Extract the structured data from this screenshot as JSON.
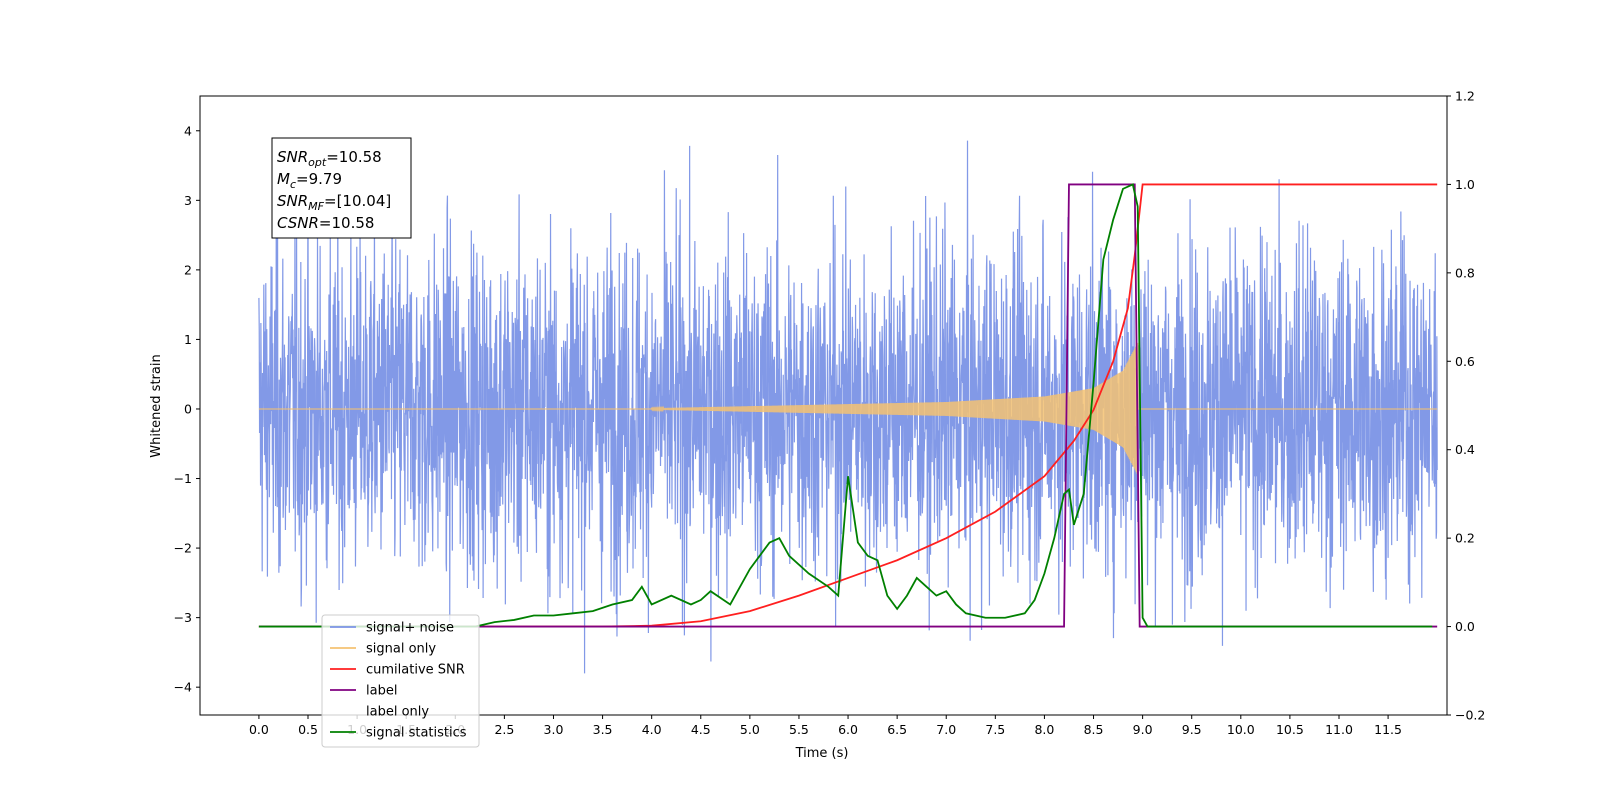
{
  "chart_data": {
    "type": "line",
    "title": "",
    "xlabel": "Time (s)",
    "ylabel": "Whitened strain",
    "xlim": [
      -0.6,
      12.1
    ],
    "ylim": [
      -4.4,
      4.5
    ],
    "y2lim": [
      -0.2,
      1.2
    ],
    "x_ticks": [
      0.0,
      0.5,
      1.0,
      1.5,
      2.0,
      2.5,
      3.0,
      3.5,
      4.0,
      4.5,
      5.0,
      5.5,
      6.0,
      6.5,
      7.0,
      7.5,
      8.0,
      8.5,
      9.0,
      9.5,
      10.0,
      10.5,
      11.0,
      11.5
    ],
    "x_tick_labels": [
      "0.0",
      "0.5",
      "1.0",
      "1.5",
      "2.0",
      "2.5",
      "3.0",
      "3.5",
      "4.0",
      "4.5",
      "5.0",
      "5.5",
      "6.0",
      "6.5",
      "7.0",
      "7.5",
      "8.0",
      "8.5",
      "9.0",
      "9.5",
      "10.0",
      "10.5",
      "11.0",
      "11.5"
    ],
    "y_ticks": [
      -4,
      -3,
      -2,
      -1,
      0,
      1,
      2,
      3,
      4
    ],
    "y_tick_labels": [
      "−4",
      "−3",
      "−2",
      "−1",
      "0",
      "1",
      "2",
      "3",
      "4"
    ],
    "y2_ticks": [
      -0.2,
      0.0,
      0.2,
      0.4,
      0.6,
      0.8,
      1.0,
      1.2
    ],
    "y2_tick_labels": [
      "−0.2",
      "0.0",
      "0.2",
      "0.4",
      "0.6",
      "0.8",
      "1.0",
      "1.2"
    ],
    "grid": false,
    "legend_position": "lower-left",
    "annotation": {
      "lines": [
        {
          "sym": "SNR",
          "sub": "opt",
          "val": "=10.58"
        },
        {
          "sym": "M",
          "sub": "c",
          "val": "=9.79"
        },
        {
          "sym": "SNR",
          "sub": "MF",
          "val": "=[10.04]"
        },
        {
          "sym": "CSNR",
          "sub": "",
          "val": "=10.58"
        }
      ]
    },
    "series": [
      {
        "name": "signal+ noise",
        "axis": "left",
        "color": "#7b93e6",
        "kind": "noise",
        "x_range": [
          0.0,
          12.0
        ],
        "std": 1.2,
        "peak_max": 4.12,
        "peak_min": -4.0
      },
      {
        "name": "signal only",
        "axis": "left",
        "color": "#f5c272",
        "kind": "chirp",
        "x_range": [
          0.0,
          12.0
        ],
        "envelope": {
          "x": [
            4.0,
            5.0,
            6.0,
            7.0,
            8.0,
            8.5,
            8.8,
            8.95
          ],
          "amp": [
            0.01,
            0.04,
            0.07,
            0.1,
            0.18,
            0.3,
            0.55,
            0.95
          ]
        }
      },
      {
        "name": "cumilative SNR",
        "axis": "right",
        "color": "#ff1f1f",
        "x": [
          0.0,
          3.5,
          4.0,
          4.5,
          5.0,
          5.5,
          6.0,
          6.5,
          7.0,
          7.5,
          8.0,
          8.3,
          8.5,
          8.7,
          8.85,
          8.92,
          8.95,
          9.0,
          12.0
        ],
        "y": [
          0.0,
          0.0,
          0.002,
          0.012,
          0.035,
          0.07,
          0.11,
          0.15,
          0.2,
          0.26,
          0.34,
          0.42,
          0.49,
          0.6,
          0.72,
          0.84,
          0.9,
          1.0,
          1.0
        ]
      },
      {
        "name": "label",
        "axis": "right",
        "color": "#800080",
        "x": [
          0.0,
          8.2,
          8.25,
          8.92,
          8.97,
          12.0
        ],
        "y": [
          0.0,
          0.0,
          1.0,
          1.0,
          0.0,
          0.0
        ]
      },
      {
        "name": "label only",
        "axis": "right",
        "color": "#ffffff",
        "hidden": true,
        "x": [],
        "y": []
      },
      {
        "name": "signal statistics",
        "axis": "right",
        "color": "#008000",
        "x": [
          0.0,
          2.2,
          2.4,
          2.6,
          2.8,
          3.0,
          3.2,
          3.4,
          3.6,
          3.8,
          3.9,
          4.0,
          4.2,
          4.4,
          4.5,
          4.6,
          4.8,
          5.0,
          5.1,
          5.2,
          5.3,
          5.4,
          5.6,
          5.8,
          5.9,
          6.0,
          6.1,
          6.2,
          6.3,
          6.4,
          6.5,
          6.6,
          6.7,
          6.8,
          6.9,
          7.0,
          7.1,
          7.2,
          7.4,
          7.6,
          7.8,
          7.9,
          8.0,
          8.1,
          8.2,
          8.25,
          8.3,
          8.4,
          8.5,
          8.6,
          8.7,
          8.8,
          8.9,
          8.95,
          9.0,
          9.05,
          11.95
        ],
        "y": [
          0.0,
          0.0,
          0.01,
          0.015,
          0.025,
          0.025,
          0.03,
          0.035,
          0.05,
          0.06,
          0.09,
          0.05,
          0.07,
          0.05,
          0.06,
          0.08,
          0.05,
          0.13,
          0.16,
          0.19,
          0.2,
          0.16,
          0.12,
          0.09,
          0.07,
          0.34,
          0.19,
          0.16,
          0.15,
          0.07,
          0.04,
          0.07,
          0.11,
          0.09,
          0.07,
          0.08,
          0.05,
          0.03,
          0.02,
          0.02,
          0.03,
          0.06,
          0.12,
          0.2,
          0.3,
          0.31,
          0.23,
          0.3,
          0.55,
          0.83,
          0.92,
          0.99,
          1.0,
          0.95,
          0.02,
          0.0,
          0.0
        ]
      }
    ]
  }
}
